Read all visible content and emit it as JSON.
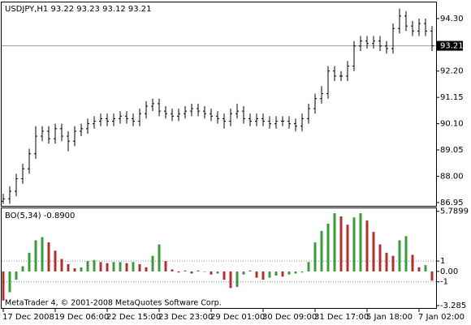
{
  "chart_data": [
    {
      "type": "ohlc",
      "title": "USDJPY,H1  93.22 93.23 93.12 93.21",
      "color": "#000000",
      "categories": [
        "17 Dec 2008",
        null,
        null,
        null,
        null,
        null,
        null,
        null,
        "19 Dec 06:00",
        null,
        null,
        null,
        null,
        null,
        null,
        null,
        "22 Dec 15:00",
        null,
        null,
        null,
        null,
        null,
        null,
        null,
        "23 Dec 23:00",
        null,
        null,
        null,
        null,
        null,
        null,
        null,
        "29 Dec 01:00",
        null,
        null,
        null,
        null,
        null,
        null,
        null,
        "30 Dec 09:00",
        null,
        null,
        null,
        null,
        null,
        null,
        null,
        "31 Dec 17:00",
        null,
        null,
        null,
        null,
        null,
        null,
        null,
        "5 Jan 18:00",
        null,
        null,
        null,
        null,
        null,
        null,
        null,
        "7 Jan 02:00",
        null,
        null
      ],
      "open": [
        87.0,
        87.1,
        87.4,
        87.9,
        88.3,
        88.9,
        89.6,
        89.8,
        89.5,
        89.9,
        89.6,
        89.4,
        89.8,
        89.9,
        90.1,
        90.2,
        90.3,
        90.2,
        90.3,
        90.4,
        90.3,
        90.2,
        90.5,
        90.8,
        90.9,
        90.6,
        90.5,
        90.4,
        90.5,
        90.6,
        90.7,
        90.6,
        90.5,
        90.4,
        90.3,
        90.2,
        90.5,
        90.6,
        90.3,
        90.2,
        90.3,
        90.2,
        90.1,
        90.2,
        90.2,
        90.1,
        90.0,
        90.3,
        90.7,
        91.1,
        91.3,
        92.2,
        92.0,
        92.0,
        92.4,
        93.2,
        93.4,
        93.3,
        93.4,
        93.2,
        93.1,
        93.9,
        94.4,
        94.0,
        93.8,
        94.1,
        93.8
      ],
      "high": [
        87.3,
        87.6,
        88.1,
        88.5,
        89.1,
        90.0,
        90.0,
        90.0,
        90.1,
        90.1,
        89.8,
        90.0,
        90.1,
        90.3,
        90.4,
        90.5,
        90.5,
        90.5,
        90.6,
        90.6,
        90.5,
        90.7,
        91.0,
        91.1,
        91.1,
        90.8,
        90.7,
        90.7,
        90.8,
        90.9,
        90.9,
        90.8,
        90.7,
        90.6,
        90.5,
        90.7,
        90.9,
        90.8,
        90.5,
        90.5,
        90.5,
        90.4,
        90.4,
        90.4,
        90.4,
        90.3,
        90.5,
        90.9,
        91.3,
        91.6,
        92.4,
        92.4,
        92.2,
        92.6,
        93.4,
        93.6,
        93.6,
        93.6,
        93.6,
        93.4,
        94.1,
        94.7,
        94.6,
        94.2,
        94.3,
        94.3,
        94.0
      ],
      "low": [
        86.9,
        86.9,
        87.2,
        87.7,
        88.1,
        88.7,
        89.4,
        89.3,
        89.3,
        89.4,
        89.0,
        89.2,
        89.6,
        89.7,
        89.9,
        90.0,
        90.0,
        90.0,
        90.1,
        90.1,
        90.0,
        90.0,
        90.3,
        90.6,
        90.4,
        90.3,
        90.2,
        90.2,
        90.3,
        90.4,
        90.4,
        90.3,
        90.2,
        90.1,
        89.9,
        90.0,
        90.3,
        90.1,
        90.0,
        90.0,
        90.0,
        89.9,
        89.9,
        90.0,
        89.9,
        89.8,
        89.8,
        90.1,
        90.5,
        90.9,
        91.1,
        91.8,
        91.8,
        91.8,
        92.2,
        93.0,
        93.1,
        93.1,
        93.0,
        92.9,
        92.9,
        93.7,
        93.8,
        93.6,
        93.6,
        93.6,
        93.0
      ],
      "close": [
        87.1,
        87.4,
        87.9,
        88.3,
        88.9,
        89.6,
        89.8,
        89.5,
        89.9,
        89.6,
        89.4,
        89.8,
        89.9,
        90.1,
        90.2,
        90.3,
        90.2,
        90.3,
        90.4,
        90.3,
        90.2,
        90.5,
        90.8,
        90.9,
        90.6,
        90.5,
        90.4,
        90.5,
        90.6,
        90.7,
        90.6,
        90.5,
        90.4,
        90.3,
        90.2,
        90.5,
        90.6,
        90.3,
        90.2,
        90.3,
        90.2,
        90.1,
        90.2,
        90.2,
        90.1,
        90.0,
        90.3,
        90.7,
        91.1,
        91.3,
        92.2,
        92.0,
        92.0,
        92.4,
        93.2,
        93.4,
        93.3,
        93.4,
        93.2,
        93.1,
        93.9,
        94.4,
        94.0,
        93.8,
        94.1,
        93.8,
        93.21
      ],
      "ylim": [
        86.85,
        94.91
      ],
      "yticks": [
        {
          "value": 94.3,
          "label": "94.30"
        },
        {
          "value": 92.2,
          "label": "92.20"
        },
        {
          "value": 91.15,
          "label": "91.15"
        },
        {
          "value": 90.1,
          "label": "90.10"
        },
        {
          "value": 89.05,
          "label": "89.05"
        },
        {
          "value": 88.0,
          "label": "88.00"
        },
        {
          "value": 86.95,
          "label": "86.95"
        }
      ],
      "price_line": {
        "value": 93.21,
        "label": "93.21"
      }
    },
    {
      "type": "histogram",
      "title": "BO(5,34) -0.8900",
      "color_up": "#3c9a3c",
      "color_down": "#b03030",
      "values": [
        -2.8,
        -2.0,
        -0.8,
        0.5,
        1.8,
        3.0,
        3.3,
        2.8,
        2.0,
        1.2,
        0.7,
        0.3,
        0.4,
        1.0,
        1.1,
        0.9,
        0.8,
        0.9,
        0.9,
        0.8,
        0.9,
        0.7,
        0.4,
        1.5,
        2.6,
        1.0,
        0.2,
        -0.1,
        0.1,
        -0.2,
        0.1,
        0.0,
        -0.3,
        -0.2,
        -0.8,
        -1.6,
        -1.5,
        -0.3,
        0.1,
        -0.6,
        -0.8,
        -0.6,
        -0.4,
        -0.5,
        -0.3,
        -0.2,
        -0.1,
        0.9,
        2.8,
        3.9,
        4.6,
        5.6,
        5.3,
        4.5,
        5.2,
        5.6,
        4.9,
        3.8,
        2.6,
        1.8,
        1.5,
        3.0,
        3.4,
        1.6,
        0.4,
        0.6,
        -0.89
      ],
      "ylim": [
        -3.44,
        6.0
      ],
      "yticks": [
        5.7899,
        1,
        {
          "value": 0,
          "label": "0.00"
        },
        -1,
        -3.285
      ],
      "levels": [
        1,
        -1
      ]
    }
  ],
  "footer": "MetaTrader 4, © 2001-2008 MetaQuotes Software Corp."
}
